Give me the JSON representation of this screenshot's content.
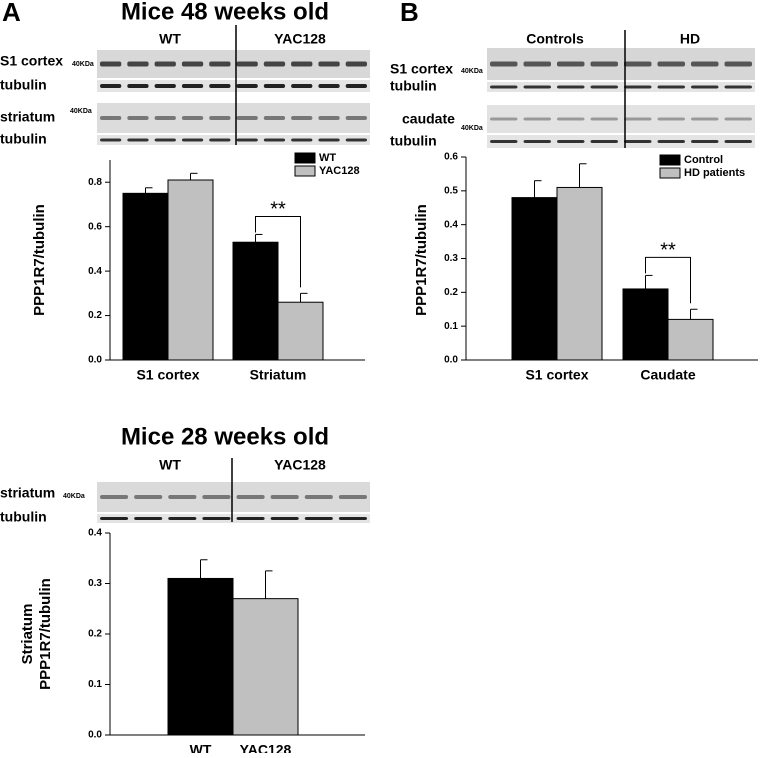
{
  "chart_data": [
    {
      "type": "bar",
      "panel": "A",
      "title": "Mice 48 weeks old",
      "blot": {
        "groups": [
          "WT",
          "YAC128"
        ],
        "rows": [
          {
            "label": "S1 cortex",
            "marker": "40KDa"
          },
          {
            "label": "tubulin"
          },
          {
            "label": "striatum",
            "marker": "40KDa"
          },
          {
            "label": "tubulin"
          }
        ]
      },
      "y_label": "PPP1R7/tubulin",
      "categories": [
        "S1 cortex",
        "Striatum"
      ],
      "series": [
        {
          "name": "WT",
          "color": "#000000",
          "values": [
            0.75,
            0.53
          ],
          "errors": [
            0.025,
            0.035
          ]
        },
        {
          "name": "YAC128",
          "color": "#c0c0c0",
          "values": [
            0.81,
            0.26
          ],
          "errors": [
            0.03,
            0.04
          ]
        }
      ],
      "ylim": [
        0,
        0.9
      ],
      "yticks": [
        {
          "value": 0,
          "label": "0.0"
        },
        0.2,
        0.4,
        0.6,
        0.8
      ],
      "annotations": [
        {
          "text": "**",
          "category": 1
        }
      ],
      "legend": "top-right"
    },
    {
      "type": "bar",
      "panel": "B",
      "blot": {
        "groups": [
          "Controls",
          "HD"
        ],
        "rows": [
          {
            "label": "S1 cortex",
            "marker": "40KDa"
          },
          {
            "label": "tubulin"
          },
          {
            "label": "caudate",
            "marker": "40KDa"
          },
          {
            "label": "tubulin"
          }
        ]
      },
      "y_label": "PPP1R7/tubulin",
      "categories": [
        "S1 cortex",
        "Caudate"
      ],
      "series": [
        {
          "name": "Control",
          "color": "#000000",
          "values": [
            0.48,
            0.21
          ],
          "errors": [
            0.05,
            0.04
          ]
        },
        {
          "name": "HD patients",
          "color": "#c0c0c0",
          "values": [
            0.51,
            0.12
          ],
          "errors": [
            0.07,
            0.03
          ]
        }
      ],
      "ylim": [
        0,
        0.6
      ],
      "yticks": [
        {
          "value": 0,
          "label": "0.0"
        },
        0.1,
        0.2,
        0.3,
        0.4,
        0.5,
        0.6
      ],
      "annotations": [
        {
          "text": "**",
          "category": 1
        }
      ],
      "legend": "top-right"
    },
    {
      "type": "bar",
      "title": "Mice 28 weeks old",
      "blot": {
        "groups": [
          "WT",
          "YAC128"
        ],
        "rows": [
          {
            "label": "striatum",
            "marker": "40KDa"
          },
          {
            "label": "tubulin"
          }
        ]
      },
      "y_label": [
        "Striatum",
        "PPP1R7/tubulin"
      ],
      "categories": [
        "WT",
        "YAC128"
      ],
      "values": [
        0.31,
        0.27
      ],
      "errors": [
        0.037,
        0.055
      ],
      "colors": [
        "#000000",
        "#c0c0c0"
      ],
      "ylim": [
        0,
        0.4
      ],
      "yticks": [
        {
          "value": 0,
          "label": "0.0"
        },
        0.1,
        0.2,
        0.3,
        0.4
      ]
    }
  ]
}
